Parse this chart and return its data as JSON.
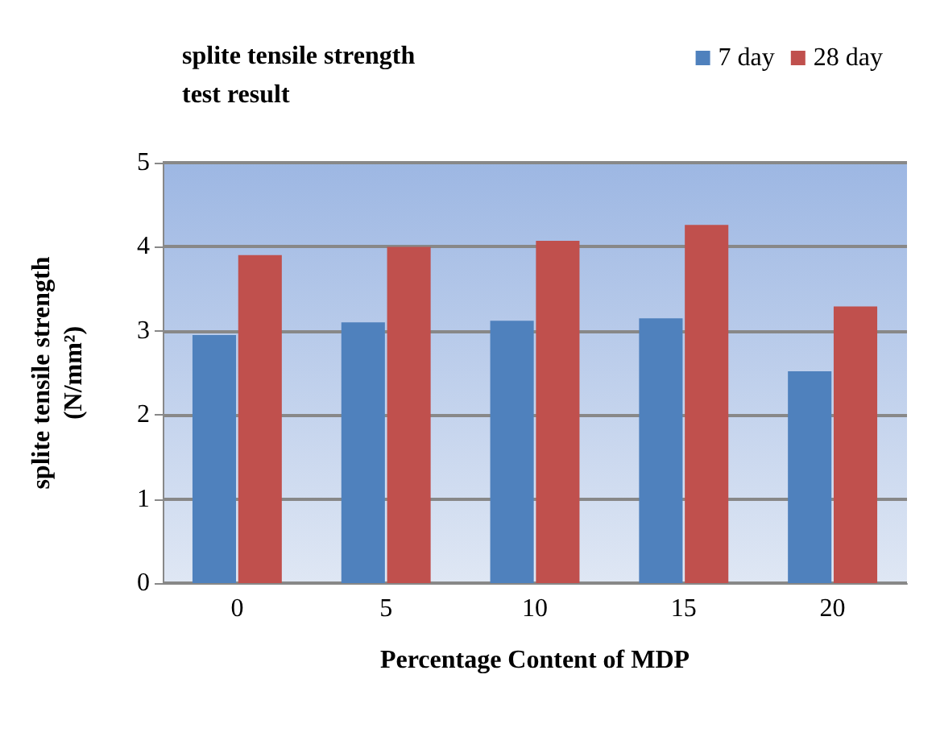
{
  "chart_data": {
    "type": "bar",
    "title": "splite tensile strength\ntest result",
    "xlabel": "Percentage Content of MDP",
    "ylabel": "splite tensile strength\n(N/mm²)",
    "categories": [
      "0",
      "5",
      "10",
      "15",
      "20"
    ],
    "series": [
      {
        "name": "7 day",
        "color": "#4f81bd",
        "values": [
          2.95,
          3.1,
          3.12,
          3.15,
          2.52
        ]
      },
      {
        "name": "28 day",
        "color": "#c0504d",
        "values": [
          3.9,
          4.0,
          4.07,
          4.26,
          3.29
        ]
      }
    ],
    "ylim": [
      0,
      5
    ],
    "yticks": [
      0,
      1,
      2,
      3,
      4,
      5
    ],
    "grid": "y",
    "legend": "top right"
  }
}
